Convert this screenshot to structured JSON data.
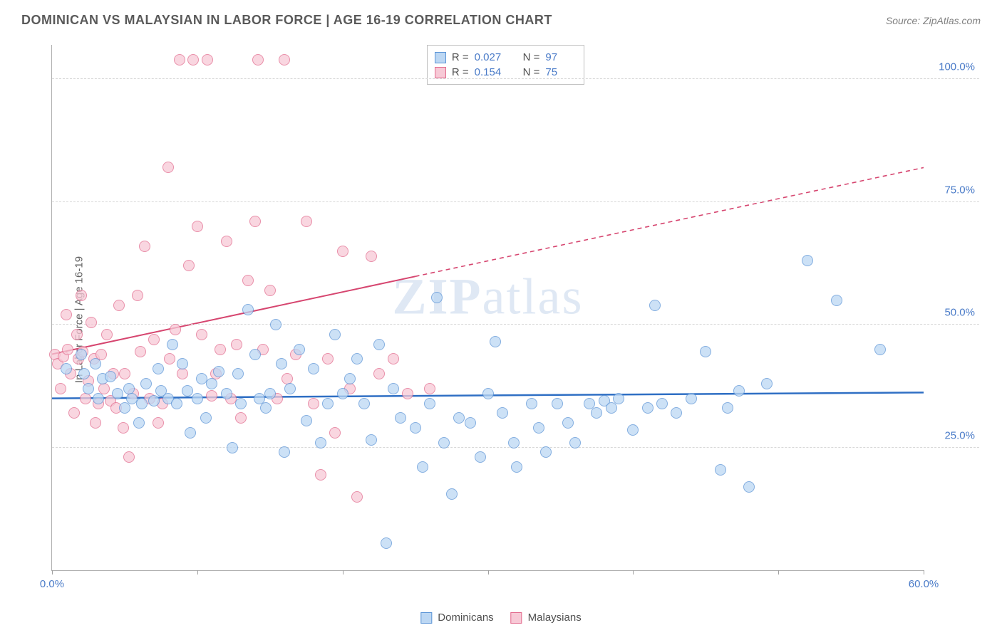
{
  "header": {
    "title": "DOMINICAN VS MALAYSIAN IN LABOR FORCE | AGE 16-19 CORRELATION CHART",
    "source": "Source: ZipAtlas.com"
  },
  "watermark": {
    "bold": "ZIP",
    "light": "atlas"
  },
  "yaxis": {
    "label": "In Labor Force | Age 16-19"
  },
  "chart": {
    "type": "scatter",
    "xlim": [
      0,
      60
    ],
    "ylim": [
      0,
      107
    ],
    "xticks": [
      0,
      10,
      20,
      30,
      40,
      50,
      60
    ],
    "xticklabels": {
      "0": "0.0%",
      "60": "60.0%"
    },
    "ygrid": [
      25,
      50,
      75,
      100
    ],
    "ylabels": {
      "25": "25.0%",
      "50": "50.0%",
      "75": "75.0%",
      "100": "100.0%"
    },
    "background_color": "#ffffff",
    "grid_color": "#d8d8d8",
    "marker_size": 16,
    "series": [
      {
        "key": "dominicans",
        "label": "Dominicans",
        "fill": "#bcd7f3",
        "stroke": "#5b94d6",
        "R": "0.027",
        "N": "97",
        "trend": {
          "x1": 0,
          "y1": 35,
          "x2": 60,
          "y2": 36.2,
          "color": "#2f6fc4",
          "width": 2.5,
          "dashedFrom": null
        },
        "points": [
          [
            1,
            41
          ],
          [
            2,
            44
          ],
          [
            2.2,
            40
          ],
          [
            2.5,
            37
          ],
          [
            3,
            42
          ],
          [
            3.2,
            35
          ],
          [
            3.5,
            39
          ],
          [
            4,
            39.5
          ],
          [
            4.5,
            36
          ],
          [
            5,
            33
          ],
          [
            5.3,
            37
          ],
          [
            5.5,
            35
          ],
          [
            6,
            30
          ],
          [
            6.2,
            34
          ],
          [
            6.5,
            38
          ],
          [
            7,
            34.5
          ],
          [
            7.3,
            41
          ],
          [
            7.5,
            36.5
          ],
          [
            8,
            35
          ],
          [
            8.3,
            46
          ],
          [
            8.6,
            34
          ],
          [
            9,
            42
          ],
          [
            9.3,
            36.5
          ],
          [
            9.5,
            28
          ],
          [
            10,
            35
          ],
          [
            10.3,
            39
          ],
          [
            10.6,
            31
          ],
          [
            11,
            38
          ],
          [
            11.5,
            40.5
          ],
          [
            12,
            36
          ],
          [
            12.4,
            25
          ],
          [
            12.8,
            40
          ],
          [
            13,
            34
          ],
          [
            13.5,
            53
          ],
          [
            14,
            44
          ],
          [
            14.3,
            35
          ],
          [
            14.7,
            33
          ],
          [
            15,
            36
          ],
          [
            15.4,
            50
          ],
          [
            15.8,
            42
          ],
          [
            16,
            24
          ],
          [
            16.4,
            37
          ],
          [
            17,
            45
          ],
          [
            17.5,
            30.5
          ],
          [
            18,
            41
          ],
          [
            18.5,
            26
          ],
          [
            19,
            34
          ],
          [
            19.5,
            48
          ],
          [
            20,
            36
          ],
          [
            20.5,
            39
          ],
          [
            21,
            43
          ],
          [
            21.5,
            34
          ],
          [
            22,
            26.5
          ],
          [
            22.5,
            46
          ],
          [
            23,
            5.5
          ],
          [
            23.5,
            37
          ],
          [
            24,
            31
          ],
          [
            25,
            29
          ],
          [
            25.5,
            21
          ],
          [
            26,
            34
          ],
          [
            26.5,
            55.5
          ],
          [
            27,
            26
          ],
          [
            27.5,
            15.5
          ],
          [
            28,
            31
          ],
          [
            28.8,
            30
          ],
          [
            29.5,
            23
          ],
          [
            30,
            36
          ],
          [
            30.5,
            46.5
          ],
          [
            31,
            32
          ],
          [
            31.8,
            26
          ],
          [
            32,
            21
          ],
          [
            33,
            34
          ],
          [
            33.5,
            29
          ],
          [
            34,
            24
          ],
          [
            34.8,
            34
          ],
          [
            35.5,
            30
          ],
          [
            36,
            26
          ],
          [
            37,
            34
          ],
          [
            37.5,
            32
          ],
          [
            38,
            34.5
          ],
          [
            38.5,
            33
          ],
          [
            39,
            35
          ],
          [
            40,
            28.5
          ],
          [
            41,
            33
          ],
          [
            41.5,
            54
          ],
          [
            42,
            34
          ],
          [
            43,
            32
          ],
          [
            44,
            35
          ],
          [
            45,
            44.5
          ],
          [
            46,
            20.5
          ],
          [
            47.3,
            36.5
          ],
          [
            48,
            17
          ],
          [
            49.2,
            38
          ],
          [
            52,
            63
          ],
          [
            54,
            55
          ],
          [
            57,
            45
          ],
          [
            46.5,
            33
          ]
        ]
      },
      {
        "key": "malaysians",
        "label": "Malaysians",
        "fill": "#f7c9d6",
        "stroke": "#e26a8d",
        "R": "0.154",
        "N": "75",
        "trend": {
          "x1": 0,
          "y1": 44,
          "x2": 60,
          "y2": 82,
          "color": "#d6456f",
          "width": 2,
          "dashedFrom": 25
        },
        "points": [
          [
            0.2,
            44
          ],
          [
            0.4,
            42
          ],
          [
            0.6,
            37
          ],
          [
            0.8,
            43.5
          ],
          [
            1,
            52
          ],
          [
            1.1,
            45
          ],
          [
            1.3,
            40
          ],
          [
            1.5,
            32
          ],
          [
            1.7,
            48
          ],
          [
            1.8,
            43
          ],
          [
            2,
            56
          ],
          [
            2.1,
            44.5
          ],
          [
            2.3,
            35
          ],
          [
            2.5,
            38.5
          ],
          [
            2.7,
            50.5
          ],
          [
            2.9,
            43
          ],
          [
            3,
            30
          ],
          [
            3.2,
            34
          ],
          [
            3.4,
            44
          ],
          [
            3.6,
            37
          ],
          [
            3.8,
            48
          ],
          [
            4,
            34.5
          ],
          [
            4.2,
            40
          ],
          [
            4.4,
            33
          ],
          [
            4.6,
            54
          ],
          [
            4.9,
            29
          ],
          [
            5,
            40
          ],
          [
            5.3,
            23
          ],
          [
            5.6,
            36
          ],
          [
            5.9,
            56
          ],
          [
            6.1,
            44.5
          ],
          [
            6.4,
            66
          ],
          [
            6.7,
            35
          ],
          [
            7,
            47
          ],
          [
            7.3,
            30
          ],
          [
            7.6,
            34
          ],
          [
            8,
            82
          ],
          [
            8.1,
            43
          ],
          [
            8.5,
            49
          ],
          [
            8.8,
            104
          ],
          [
            9,
            40
          ],
          [
            9.4,
            62
          ],
          [
            9.7,
            104
          ],
          [
            10,
            70
          ],
          [
            10.3,
            48
          ],
          [
            10.7,
            104
          ],
          [
            11,
            35.5
          ],
          [
            11.3,
            40
          ],
          [
            11.6,
            45
          ],
          [
            12,
            67
          ],
          [
            12.3,
            35
          ],
          [
            12.7,
            46
          ],
          [
            13,
            31
          ],
          [
            13.5,
            59
          ],
          [
            14,
            71
          ],
          [
            14.2,
            104
          ],
          [
            14.5,
            45
          ],
          [
            15,
            57
          ],
          [
            15.5,
            35
          ],
          [
            16,
            104
          ],
          [
            16.2,
            39
          ],
          [
            16.8,
            44
          ],
          [
            17.5,
            71
          ],
          [
            18,
            34
          ],
          [
            18.5,
            19.5
          ],
          [
            19,
            43
          ],
          [
            19.5,
            28
          ],
          [
            20,
            65
          ],
          [
            20.5,
            37
          ],
          [
            21,
            15
          ],
          [
            22,
            64
          ],
          [
            22.5,
            40
          ],
          [
            23.5,
            43
          ],
          [
            24.5,
            36
          ],
          [
            26,
            37
          ]
        ]
      }
    ]
  },
  "legend": {
    "items": [
      {
        "label": "Dominicans",
        "fill": "#bcd7f3",
        "stroke": "#5b94d6"
      },
      {
        "label": "Malaysians",
        "fill": "#f7c9d6",
        "stroke": "#e26a8d"
      }
    ]
  }
}
